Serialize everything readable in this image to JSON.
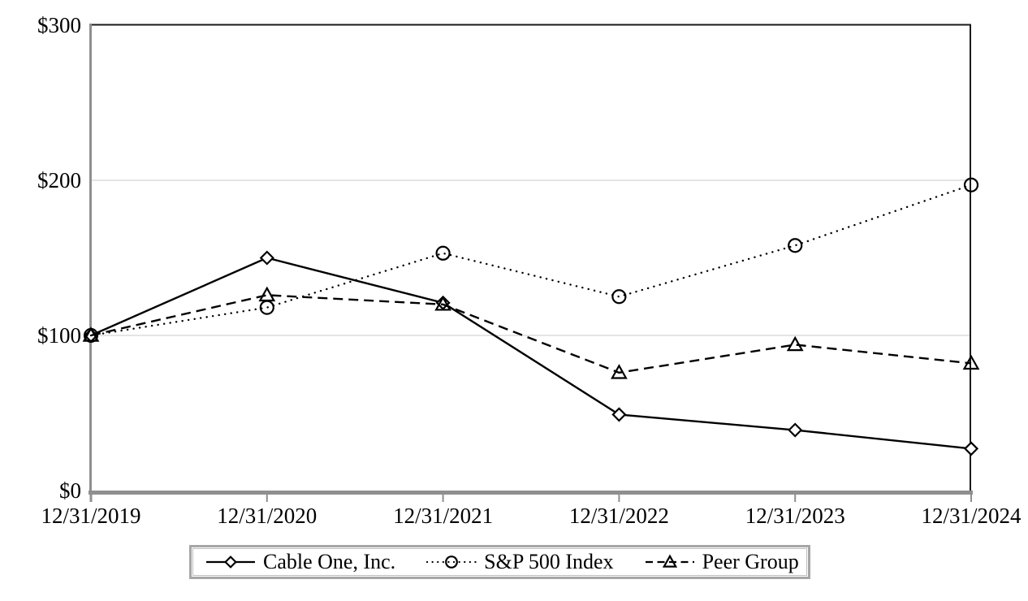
{
  "chart_data": {
    "type": "line",
    "title": "",
    "categories": [
      "12/31/2019",
      "12/31/2020",
      "12/31/2021",
      "12/31/2022",
      "12/31/2023",
      "12/31/2024"
    ],
    "series": [
      {
        "name": "Cable One, Inc.",
        "marker": "diamond",
        "line_style": "solid",
        "values": [
          100,
          150,
          121,
          49,
          39,
          27
        ]
      },
      {
        "name": "S&P 500 Index",
        "marker": "circle",
        "line_style": "dotted",
        "values": [
          100,
          118,
          153,
          125,
          158,
          197
        ]
      },
      {
        "name": "Peer Group",
        "marker": "triangle",
        "line_style": "dashed",
        "values": [
          100,
          126,
          120,
          76,
          94,
          82
        ]
      }
    ],
    "ylim": [
      0,
      300
    ],
    "yticks": [
      {
        "value": 0,
        "label": "$0"
      },
      {
        "value": 100,
        "label": "$100"
      },
      {
        "value": 200,
        "label": "$200"
      },
      {
        "value": 300,
        "label": "$300"
      }
    ],
    "gridlines_at": [
      100,
      200
    ],
    "legend_position": "bottom",
    "colors": {
      "line": "#000000",
      "marker_fill": "#ffffff",
      "axis": "#8f8f8f",
      "gridline": "#dcdcdc",
      "plot_border": "#1a1a1a",
      "legend_border": "#a6a6a6",
      "text": "#000000",
      "background": "#ffffff"
    }
  }
}
